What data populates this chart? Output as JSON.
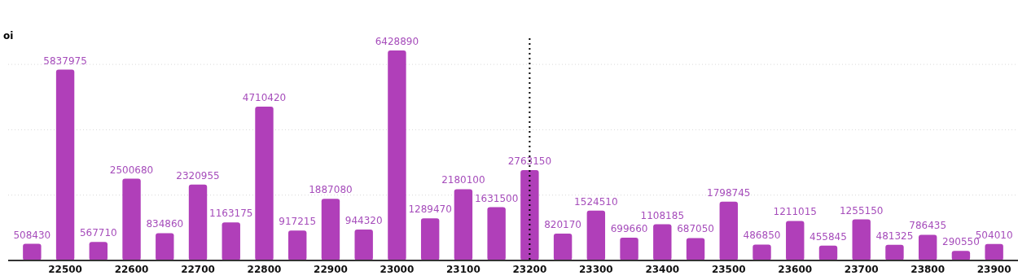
{
  "chart_data": {
    "type": "bar",
    "ylabel": "oi",
    "categories": [
      null,
      "22500",
      null,
      "22600",
      null,
      "22700",
      null,
      "22800",
      null,
      "22900",
      null,
      "23000",
      null,
      "23100",
      null,
      "23200",
      null,
      "23300",
      null,
      "23400",
      null,
      "23500",
      null,
      "23600",
      null,
      "23700",
      null,
      "23800",
      null,
      "23900"
    ],
    "values": [
      508430,
      5837975,
      567710,
      2500680,
      834860,
      2320955,
      1163175,
      4710420,
      917215,
      1887080,
      944320,
      6428890,
      1289470,
      2180100,
      1631500,
      2763150,
      820170,
      1524510,
      699660,
      1108185,
      687050,
      1798745,
      486850,
      1211015,
      455845,
      1255150,
      481325,
      786435,
      290550,
      504010
    ],
    "color": "#b03fb9",
    "ylim": [
      0,
      6800000
    ],
    "yticks": [
      {
        "value": 0,
        "label": null
      },
      {
        "value": 2000000,
        "label": null
      },
      {
        "value": 4000000,
        "label": null
      },
      {
        "value": 6000000,
        "label": null
      }
    ],
    "tick_labels": "x",
    "grid": "y",
    "data_labels": true,
    "ref_lines": [
      {
        "axis": "x",
        "value": "23200",
        "color": "#000000",
        "line_style": "dotted"
      }
    ]
  }
}
